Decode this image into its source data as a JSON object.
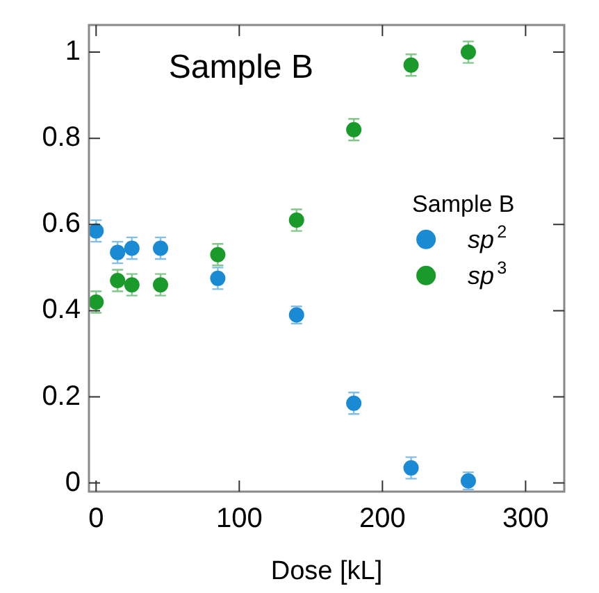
{
  "chart_data": {
    "type": "scatter",
    "title": "Sample B",
    "xlabel": "Dose [kL]",
    "legend_title": "Sample B",
    "legend": "right",
    "marker": "circle",
    "grid": false,
    "x": [
      0,
      15,
      25,
      45,
      85,
      140,
      180,
      220,
      260
    ],
    "xlim": [
      -5,
      327
    ],
    "xticks": [
      0,
      100,
      200,
      300
    ],
    "ylim": [
      -0.02,
      1.063
    ],
    "yticks": [
      0,
      0.2,
      0.4,
      0.6,
      0.8,
      1
    ],
    "series": [
      {
        "name": "sp$^{2}$",
        "color": "#1a8ad4",
        "values": [
          0.585,
          0.535,
          0.545,
          0.545,
          0.475,
          0.39,
          0.185,
          0.035,
          0.005
        ],
        "errors": [
          0.025,
          0.025,
          0.025,
          0.025,
          0.025,
          0.02,
          0.025,
          0.025,
          0.02
        ]
      },
      {
        "name": "sp$^{3}$",
        "color": "#1a9a2a",
        "values": [
          0.42,
          0.47,
          0.46,
          0.46,
          0.53,
          0.61,
          0.82,
          0.97,
          1.0
        ],
        "errors": [
          0.025,
          0.025,
          0.025,
          0.025,
          0.025,
          0.025,
          0.025,
          0.025,
          0.025
        ]
      }
    ]
  }
}
